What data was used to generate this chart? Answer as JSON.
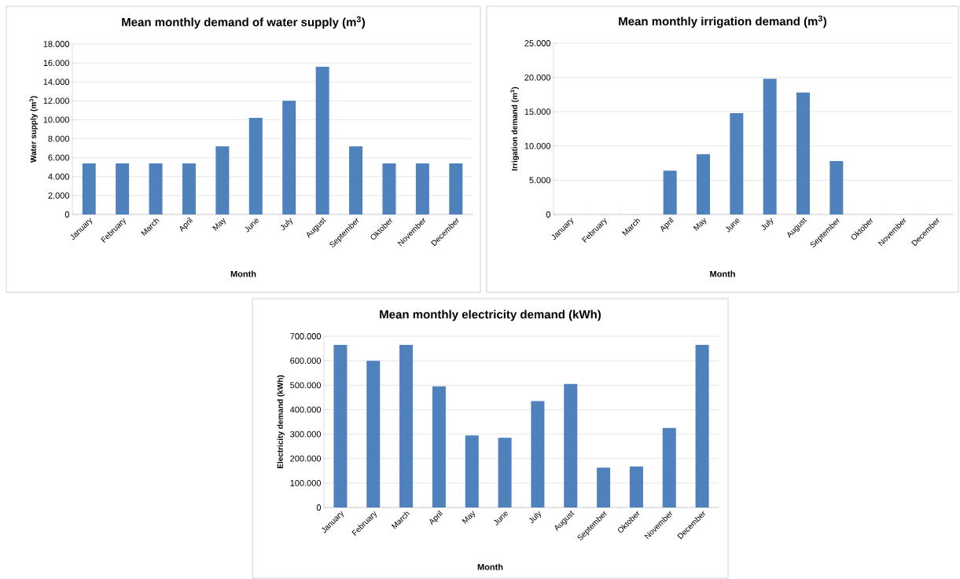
{
  "chart_data": [
    {
      "type": "bar",
      "title": "Mean monthly demand of water supply (m$^{3}$)",
      "xlabel": "Month",
      "ylabel": "Water supply (m$^{3}$)",
      "categories": [
        "January",
        "February",
        "March",
        "April",
        "May",
        "June",
        "July",
        "August",
        "September",
        "Oktober",
        "November",
        "December"
      ],
      "values": [
        5400,
        5400,
        5400,
        5400,
        7200,
        10200,
        12000,
        15600,
        7200,
        5400,
        5400,
        5400
      ],
      "color": "#4f81bd",
      "ylim": [
        0,
        18000
      ],
      "yticks": [
        0,
        {
          "value": 2000,
          "label": "2.000"
        },
        {
          "value": 4000,
          "label": "4.000"
        },
        {
          "value": 6000,
          "label": "6.000"
        },
        {
          "value": 8000,
          "label": "8.000"
        },
        {
          "value": 10000,
          "label": "10.000"
        },
        {
          "value": 12000,
          "label": "12.000"
        },
        {
          "value": 14000,
          "label": "14.000"
        },
        {
          "value": 16000,
          "label": "16.000"
        },
        {
          "value": 18000,
          "label": "18.000"
        }
      ],
      "grid": "y"
    },
    {
      "type": "bar",
      "title": "Mean monthly  irrigation demand (m$^{3}$)",
      "xlabel": "Month",
      "ylabel": "Irrigation demand (m$^{3}$)",
      "categories": [
        "January",
        "February",
        "March",
        "April",
        "May",
        "June",
        "July",
        "August",
        "September",
        "Oktober",
        "November",
        "December"
      ],
      "values": [
        0,
        0,
        0,
        6400,
        8800,
        14800,
        19800,
        17800,
        7800,
        0,
        0,
        0
      ],
      "color": "#4f81bd",
      "ylim": [
        0,
        25000
      ],
      "yticks": [
        0,
        {
          "value": 5000,
          "label": "5.000"
        },
        {
          "value": 10000,
          "label": "10.000"
        },
        {
          "value": 15000,
          "label": "15.000"
        },
        {
          "value": 20000,
          "label": "20.000"
        },
        {
          "value": 25000,
          "label": "25.000"
        }
      ],
      "grid": "y"
    },
    {
      "type": "bar",
      "title": "Mean monthly electricity demand (kWh)",
      "xlabel": "Month",
      "ylabel": "Electricity demand (kWh)",
      "categories": [
        "January",
        "February",
        "March",
        "April",
        "May",
        "June",
        "July",
        "August",
        "September",
        "Oktober",
        "November",
        "December"
      ],
      "values": [
        665000,
        600000,
        665000,
        495000,
        295000,
        285000,
        435000,
        505000,
        163000,
        168000,
        325000,
        665000
      ],
      "color": "#4f81bd",
      "ylim": [
        0,
        700000
      ],
      "yticks": [
        0,
        {
          "value": 100000,
          "label": "100.000"
        },
        {
          "value": 200000,
          "label": "200.000"
        },
        {
          "value": 300000,
          "label": "300.000"
        },
        {
          "value": 400000,
          "label": "400.000"
        },
        {
          "value": 500000,
          "label": "500.000"
        },
        {
          "value": 600000,
          "label": "600.000"
        },
        {
          "value": 700000,
          "label": "700.000"
        }
      ],
      "grid": "y"
    }
  ]
}
